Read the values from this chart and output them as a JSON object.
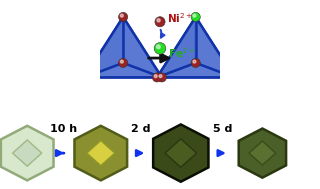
{
  "bg_color": "#ffffff",
  "red_sphere": "#992222",
  "green_sphere": "#22DD22",
  "face_color": "#4466CC",
  "edge_color": "#1133AA",
  "ni_label_color": "#AA1111",
  "fe_label_color": "#22AA22",
  "arrow_color": "#111111",
  "blue_arrow_color": "#2244CC",
  "bottom_arrow_color": "#1133EE",
  "time_labels": [
    "10 h",
    "2 d",
    "5 d"
  ],
  "crystals": [
    {
      "face": "#d8e8cc",
      "edge": "#90aa78",
      "inner": "#c8dac0",
      "inner_edge": "#a0b888"
    },
    {
      "face": "#8a9030",
      "edge": "#505c18",
      "inner": "#d8d040",
      "inner_edge": "#909828"
    },
    {
      "face": "#3a4a18",
      "edge": "#0a0e04",
      "inner": "#4a5c20",
      "inner_edge": "#2a3810"
    },
    {
      "face": "#4a6028",
      "edge": "#2a3810",
      "inner": "#5a7030",
      "inner_edge": "#3a4c18"
    }
  ]
}
